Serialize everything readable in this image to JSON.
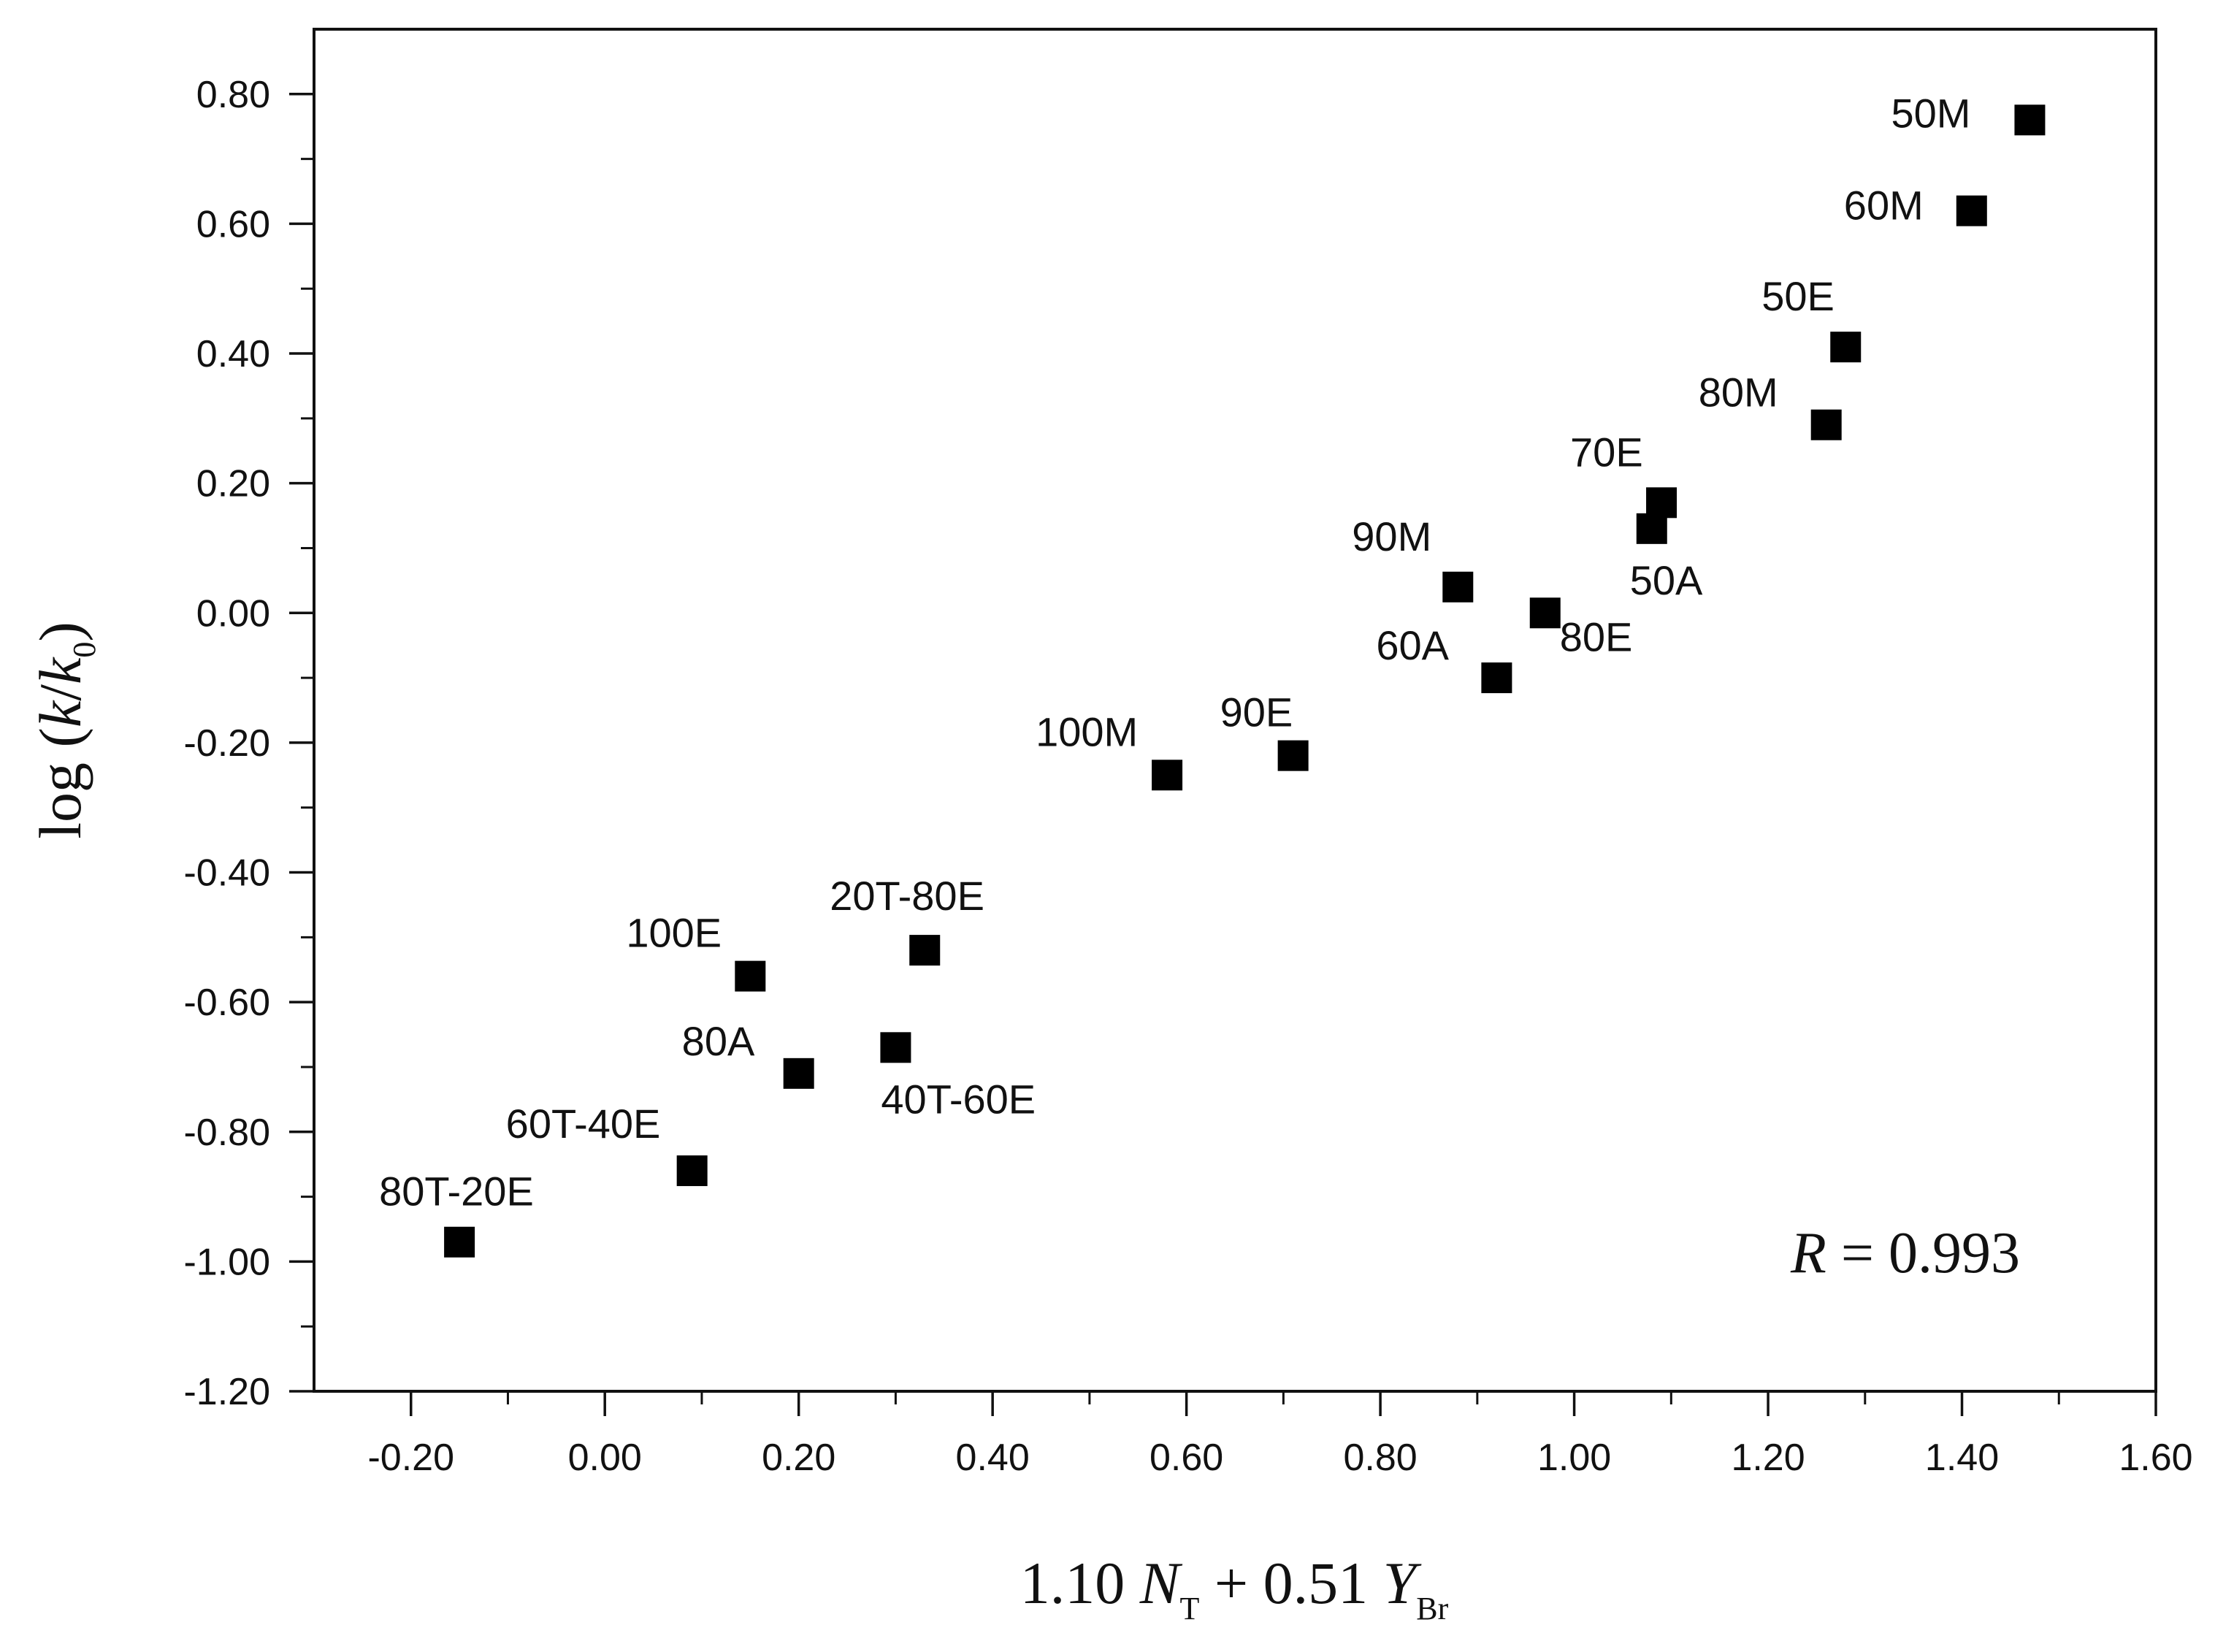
{
  "chart_data": {
    "type": "scatter",
    "title": "",
    "xlabel": {
      "coef_t": "1.10 ",
      "var_t": "N",
      "sub_t": "T",
      "plus": " + 0.51 ",
      "var_br": "Y",
      "sub_br": "Br"
    },
    "ylabel": {
      "prefix": "log (",
      "k": "k",
      "slash": "/",
      "k0": "k",
      "k0_sub": "0",
      "suffix": ")"
    },
    "xlim": [
      -0.3,
      1.6
    ],
    "ylim": [
      -1.2,
      0.9
    ],
    "x_ticks": [
      -0.2,
      0.0,
      0.2,
      0.4,
      0.6,
      0.8,
      1.0,
      1.2,
      1.4,
      1.6
    ],
    "x_tick_labels": [
      "-0.20",
      "0.00",
      "0.20",
      "0.40",
      "0.60",
      "0.80",
      "1.00",
      "1.20",
      "1.40",
      "1.60"
    ],
    "y_ticks": [
      -1.2,
      -1.0,
      -0.8,
      -0.6,
      -0.4,
      -0.2,
      0.0,
      0.2,
      0.4,
      0.6,
      0.8
    ],
    "y_tick_labels": [
      "-1.20",
      "-1.00",
      "-0.80",
      "-0.60",
      "-0.40",
      "-0.20",
      "0.00",
      "0.20",
      "0.40",
      "0.60",
      "0.80"
    ],
    "grid": false,
    "points": [
      {
        "label": "50M",
        "x": 1.47,
        "y": 0.76
      },
      {
        "label": "60M",
        "x": 1.41,
        "y": 0.62
      },
      {
        "label": "50E",
        "x": 1.28,
        "y": 0.41
      },
      {
        "label": "80M",
        "x": 1.26,
        "y": 0.29
      },
      {
        "label": "70E",
        "x": 1.09,
        "y": 0.17
      },
      {
        "label": "50A",
        "x": 1.08,
        "y": 0.13
      },
      {
        "label": "90M",
        "x": 0.88,
        "y": 0.04
      },
      {
        "label": "80E",
        "x": 0.97,
        "y": 0.0
      },
      {
        "label": "60A",
        "x": 0.92,
        "y": -0.1
      },
      {
        "label": "90E",
        "x": 0.71,
        "y": -0.22
      },
      {
        "label": "100M",
        "x": 0.58,
        "y": -0.25
      },
      {
        "label": "20T-80E",
        "x": 0.33,
        "y": -0.52
      },
      {
        "label": "100E",
        "x": 0.15,
        "y": -0.56
      },
      {
        "label": "40T-60E",
        "x": 0.3,
        "y": -0.67
      },
      {
        "label": "80A",
        "x": 0.2,
        "y": -0.71
      },
      {
        "label": "60T-40E",
        "x": 0.09,
        "y": -0.86
      },
      {
        "label": "80T-20E",
        "x": -0.15,
        "y": -0.97
      }
    ],
    "annotation": {
      "var": "R",
      "text": " = 0.993"
    }
  }
}
